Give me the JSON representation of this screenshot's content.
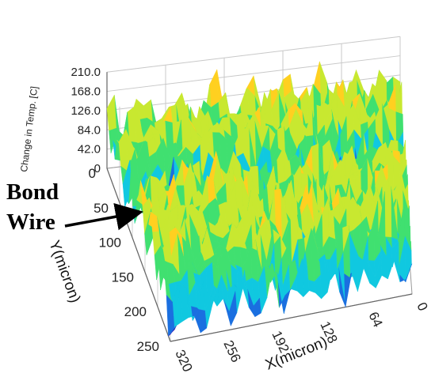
{
  "chart_data": {
    "type": "surface",
    "title": "",
    "xlabel": "X(micron)",
    "ylabel": "Y(micron)",
    "zlabel": "Change in Temp. [C]",
    "x_ticks": [
      "0",
      "64",
      "128",
      "192",
      "256",
      "320"
    ],
    "y_ticks": [
      "0",
      "50",
      "100",
      "150",
      "200",
      "250"
    ],
    "z_ticks": [
      "0",
      "42.0",
      "84.0",
      "126.0",
      "168.0",
      "210.0"
    ],
    "xlim": [
      0,
      320
    ],
    "ylim": [
      0,
      250
    ],
    "zlim": [
      0,
      210
    ],
    "grid": true,
    "colormap": [
      "#3a1fb8",
      "#1a6fe0",
      "#10c8e0",
      "#40e070",
      "#c8e830",
      "#ffd020",
      "#ff8a10",
      "#e83a00"
    ],
    "series": [
      {
        "description_values": {
          "typical_peak_range": [
            84,
            210
          ],
          "bond_wire_trench_min": 0
        }
      }
    ],
    "annotations": [
      {
        "text_line1": "Bond",
        "text_line2": "Wire"
      }
    ]
  }
}
